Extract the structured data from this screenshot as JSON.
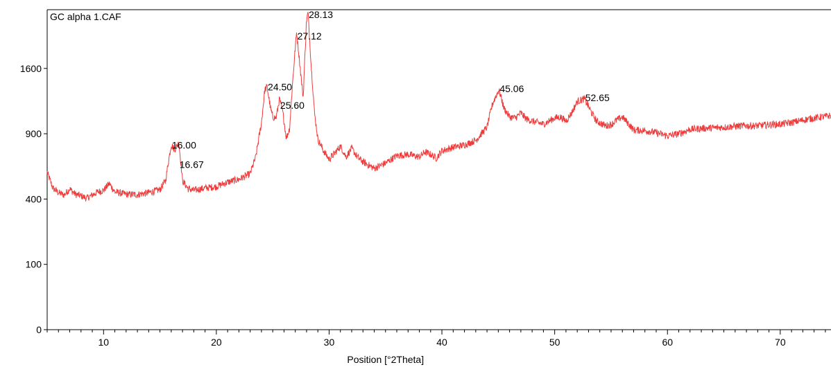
{
  "chart_data": {
    "type": "line",
    "title": "GC alpha 1.CAF",
    "xlabel": "Position [°2Theta]",
    "ylabel": "",
    "xlim": [
      5,
      74.5
    ],
    "x_ticks": [
      10,
      20,
      30,
      40,
      50,
      60,
      70
    ],
    "y_ticks": [
      0,
      100,
      400,
      900,
      1600
    ],
    "y_scale": "sqrt",
    "grid": false,
    "color": "#ee3b3b",
    "series": [
      {
        "x": [
          5.0,
          5.5,
          6.0,
          6.5,
          7.0,
          7.5,
          8.0,
          8.5,
          9.0,
          9.5,
          10.0,
          10.5,
          11.0,
          12.0,
          13.0,
          14.0,
          15.0,
          15.5,
          16.0,
          16.3,
          16.67,
          17.0,
          17.5,
          18.0,
          19.0,
          20.0,
          21.0,
          22.0,
          23.0,
          23.5,
          24.0,
          24.3,
          24.5,
          24.8,
          25.0,
          25.3,
          25.6,
          25.9,
          26.2,
          26.5,
          26.8,
          27.12,
          27.4,
          27.7,
          28.0,
          28.13,
          28.4,
          28.7,
          29.0,
          29.5,
          30.0,
          30.5,
          31.0,
          31.5,
          32.0,
          32.5,
          33.0,
          34.0,
          35.0,
          36.0,
          37.0,
          38.0,
          38.5,
          39.0,
          39.5,
          40.0,
          41.0,
          42.0,
          43.0,
          44.0,
          44.5,
          45.06,
          45.5,
          46.0,
          46.5,
          47.0,
          47.5,
          48.0,
          49.0,
          50.0,
          50.5,
          51.0,
          51.5,
          52.0,
          52.65,
          53.2,
          53.7,
          54.5,
          55.0,
          55.5,
          56.0,
          56.5,
          57.0,
          58.0,
          59.0,
          60.0,
          61.0,
          62.0,
          63.0,
          64.0,
          65.0,
          66.0,
          67.0,
          68.0,
          69.0,
          70.0,
          71.0,
          72.0,
          73.0,
          74.0,
          74.5
        ],
        "y": [
          580,
          470,
          440,
          425,
          465,
          430,
          420,
          405,
          425,
          445,
          455,
          500,
          445,
          430,
          428,
          440,
          460,
          520,
          800,
          760,
          820,
          520,
          465,
          455,
          470,
          480,
          510,
          530,
          570,
          700,
          1000,
          1350,
          1380,
          1150,
          1060,
          1050,
          1250,
          1100,
          860,
          950,
          1500,
          2080,
          1650,
          1250,
          2250,
          2350,
          1650,
          1100,
          850,
          750,
          680,
          730,
          790,
          700,
          770,
          700,
          660,
          610,
          650,
          710,
          720,
          700,
          740,
          720,
          690,
          750,
          780,
          800,
          840,
          960,
          1200,
          1350,
          1150,
          1060,
          1050,
          1100,
          1040,
          1020,
          990,
          1050,
          1060,
          1020,
          1100,
          1220,
          1250,
          1120,
          1020,
          975,
          985,
          1030,
          1060,
          1000,
          935,
          930,
          910,
          880,
          900,
          940,
          950,
          955,
          960,
          970,
          975,
          975,
          985,
          990,
          1005,
          1030,
          1050,
          1065,
          1075
        ]
      }
    ],
    "peak_labels": [
      {
        "text": "16.00",
        "x": 16.0,
        "y": 800
      },
      {
        "text": "16.67",
        "x": 16.67,
        "y": 640
      },
      {
        "text": "24.50",
        "x": 24.5,
        "y": 1380
      },
      {
        "text": "25.60",
        "x": 25.6,
        "y": 1180
      },
      {
        "text": "27.12",
        "x": 27.12,
        "y": 2020
      },
      {
        "text": "28.13",
        "x": 28.13,
        "y": 2330
      },
      {
        "text": "45.06",
        "x": 45.06,
        "y": 1360
      },
      {
        "text": "52.65",
        "x": 52.65,
        "y": 1260
      }
    ]
  }
}
